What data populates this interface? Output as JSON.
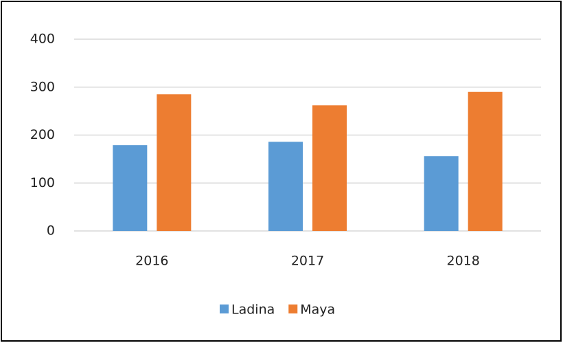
{
  "chart_data": {
    "type": "bar",
    "categories": [
      "2016",
      "2017",
      "2018"
    ],
    "series": [
      {
        "name": "Ladina",
        "color": "#5b9bd5",
        "values": [
          179,
          186,
          156
        ]
      },
      {
        "name": "Maya",
        "color": "#ed7d31",
        "values": [
          285,
          262,
          290
        ]
      }
    ],
    "ylim": [
      0,
      400
    ],
    "yticks": [
      0,
      100,
      200,
      300,
      400
    ],
    "grid": true,
    "legend": "bottom"
  }
}
